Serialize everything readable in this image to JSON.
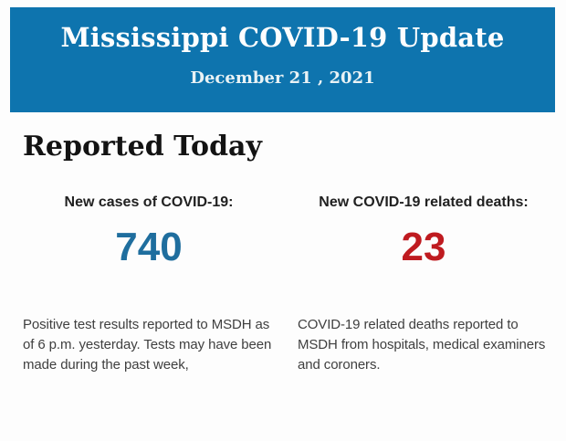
{
  "header": {
    "title": "Mississippi COVID-19 Update",
    "date": "December 21 , 2021",
    "colors": {
      "background": "#0e74ae",
      "title_text": "#fdfefe",
      "date_text": "#e9f2f5"
    }
  },
  "main": {
    "section_title": "Reported Today",
    "stats": [
      {
        "label": "New cases of COVID-19:",
        "value": "740",
        "value_color": "#1f6e9e",
        "description": "Positive test results reported to MSDH as of 6 p.m. yesterday. Tests may have been made during the past week,"
      },
      {
        "label": "New COVID-19 related deaths:",
        "value": "23",
        "value_color": "#bf1b20",
        "description": "COVID-19 related deaths reported to MSDH from hospitals, medical examiners and coroners."
      }
    ]
  }
}
